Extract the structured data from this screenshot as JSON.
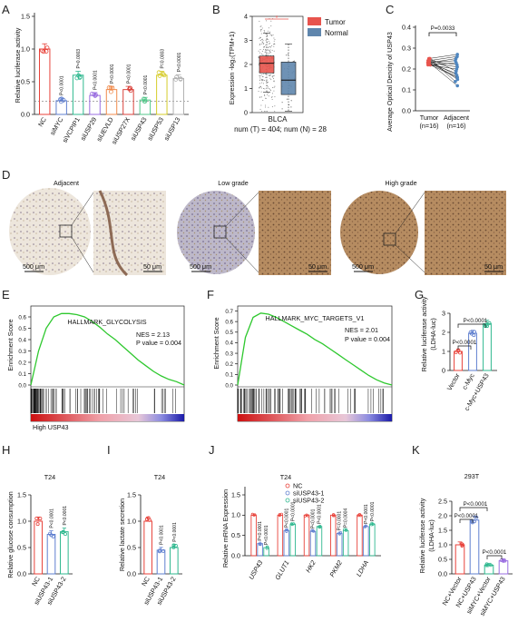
{
  "panels": {
    "A": {
      "label": "A",
      "ylabel": "Relative luciferase activity",
      "yticks": [
        "0.0",
        "0.5",
        "1.0",
        "1.5"
      ],
      "ylim": [
        0,
        1.5
      ],
      "cutoff": 0.2,
      "colors": [
        "#e8423a",
        "#5f7fcf",
        "#2fb88f",
        "#9a6ee0",
        "#f08a4b",
        "#d9423b",
        "#53c78a",
        "#d6cc2a",
        "#b2b2b2"
      ]
    },
    "B": {
      "label": "B",
      "ylabel": "Expression -log₂(TPM+1)",
      "yticks": [
        "0",
        "1",
        "2",
        "3",
        "4"
      ],
      "ylim": [
        0,
        4
      ],
      "legend": [
        {
          "name": "Tumor",
          "color": "#e8544d"
        },
        {
          "name": "Normal",
          "color": "#5f86ad"
        }
      ],
      "star": "*",
      "cohort": "BLCA",
      "num_label": "num (T) = 404; num (N) = 28"
    },
    "C": {
      "label": "C",
      "ylabel": "Average Optical Dencity of USP43",
      "yticks": [
        "0.0",
        "0.1",
        "0.2",
        "0.3",
        "0.4"
      ],
      "ylim": [
        0,
        0.4
      ],
      "pvalue": "P=0.0033",
      "groups": [
        "Tumor",
        "Adjacent"
      ],
      "n_labels": [
        "(n=16)",
        "(n=16)"
      ]
    },
    "D": {
      "label": "D",
      "titles": [
        "Adjacent",
        "Low grade",
        "High grade"
      ],
      "scale_labels": [
        "500 μm",
        "50 μm",
        "500 μm",
        "50 μm",
        "500 μm",
        "50 μm"
      ]
    },
    "E": {
      "label": "E",
      "title": "HALLMARK_GLYCOLYSIS",
      "nes": "NES = 2.13",
      "pval": "P value = 0.004",
      "ylabel": "Enrichment Score",
      "yticks": [
        "0.0",
        "0.1",
        "0.2",
        "0.3",
        "0.4",
        "0.5",
        "0.6"
      ],
      "ylim": [
        0,
        0.68
      ],
      "bottom_label": "High USP43",
      "curve_color": "#2ec82e"
    },
    "F": {
      "label": "F",
      "title": "HALLMARK_MYC_TARGETS_V1",
      "nes": "NES = 2.01",
      "pval": "P value = 0.004",
      "ylabel": "Enrichment Score",
      "yticks": [
        "0.0",
        "0.1",
        "0.2",
        "0.3",
        "0.4",
        "0.5",
        "0.6",
        "0.7"
      ],
      "ylim": [
        0,
        0.73
      ],
      "curve_color": "#2ec82e"
    },
    "G": {
      "label": "G",
      "ylabel": "Relative luciferase activity",
      "ylabel2": "(LDHA-luc)",
      "yticks": [
        "0",
        "1",
        "2",
        "3"
      ],
      "ylim": [
        0,
        3
      ],
      "pvals": [
        "P<0.0001",
        "P<0.0001"
      ],
      "colors": [
        "#e8423a",
        "#5f7fcf",
        "#2fb88f"
      ]
    },
    "H": {
      "label": "H",
      "title": "T24",
      "ylabel": "Relative glucose consumption",
      "yticks": [
        "0.0",
        "0.5",
        "1.0",
        "1.5"
      ],
      "ylim": [
        0,
        1.5
      ],
      "colors": [
        "#e8423a",
        "#5f7fcf",
        "#2fb88f"
      ]
    },
    "I": {
      "label": "I",
      "title": "T24",
      "ylabel": "Relative lactate secretion",
      "yticks": [
        "0.0",
        "0.5",
        "1.0",
        "1.5"
      ],
      "ylim": [
        0,
        1.5
      ],
      "colors": [
        "#e8423a",
        "#5f7fcf",
        "#2fb88f"
      ]
    },
    "J": {
      "label": "J",
      "title": "T24",
      "ylabel": "Relative mRNA Expression",
      "yticks": [
        "0.0",
        "0.5",
        "1.0",
        "1.5"
      ],
      "ylim": [
        0,
        1.5
      ],
      "legend": [
        "NC",
        "siUSP43-1",
        "siUSP43-2"
      ],
      "colors": [
        "#e8423a",
        "#5f7fcf",
        "#2fb88f"
      ]
    },
    "K": {
      "label": "K",
      "title": "293T",
      "ylabel": "Relative luciferase activity",
      "ylabel2": "(LDHA-luc)",
      "yticks": [
        "0.0",
        "0.5",
        "1.0",
        "1.5",
        "2.0",
        "2.5"
      ],
      "ylim": [
        0,
        2.5
      ],
      "pvals": [
        "P<0.0001",
        "P<0.0001",
        "P<0.0001"
      ],
      "colors": [
        "#e8423a",
        "#5f7fcf",
        "#2fb88f",
        "#9a6ee0"
      ]
    }
  },
  "chart_data": [
    {
      "panel": "A",
      "type": "bar",
      "categories": [
        "NC",
        "siMYC",
        "siVCPIP1",
        "siUSP29",
        "siUEVLD",
        "siUSP27X",
        "siUSP43",
        "siUSP53",
        "siUSP13"
      ],
      "values": [
        1.0,
        0.21,
        0.6,
        0.29,
        0.38,
        0.38,
        0.22,
        0.6,
        0.55
      ],
      "pvalues": [
        "",
        "P<0.0001",
        "P=0.0003",
        "P<0.0001",
        "P<0.0001",
        "P<0.0001",
        "P<0.0001",
        "P=0.0003",
        "P<0.0001"
      ],
      "ylabel": "Relative luciferase activity",
      "ylim": [
        0,
        1.5
      ]
    },
    {
      "panel": "B",
      "type": "box",
      "categories": [
        "Tumor",
        "Normal"
      ],
      "series": [
        {
          "name": "Tumor",
          "q1": 1.65,
          "median": 2.05,
          "q3": 2.35,
          "whisker_low": 0.85,
          "whisker_high": 3.3
        },
        {
          "name": "Normal",
          "q1": 0.75,
          "median": 1.35,
          "q3": 2.1,
          "whisker_low": 0.05,
          "whisker_high": 2.85
        }
      ],
      "xlabel": "BLCA",
      "ylabel": "Expression -log₂(TPM+1)",
      "ylim": [
        0,
        4
      ]
    },
    {
      "panel": "C",
      "type": "scatter",
      "categories": [
        "Tumor",
        "Adjacent"
      ],
      "pairs": [
        [
          0.25,
          0.27
        ],
        [
          0.24,
          0.26
        ],
        [
          0.23,
          0.25
        ],
        [
          0.23,
          0.24
        ],
        [
          0.22,
          0.23
        ],
        [
          0.24,
          0.22
        ],
        [
          0.23,
          0.21
        ],
        [
          0.22,
          0.2
        ],
        [
          0.25,
          0.19
        ],
        [
          0.23,
          0.18
        ],
        [
          0.24,
          0.17
        ],
        [
          0.22,
          0.16
        ],
        [
          0.23,
          0.16
        ],
        [
          0.24,
          0.15
        ],
        [
          0.25,
          0.14
        ],
        [
          0.23,
          0.12
        ]
      ],
      "ylabel": "Average Optical Dencity of USP43",
      "ylim": [
        0,
        0.4
      ]
    },
    {
      "panel": "E",
      "type": "line",
      "x": [
        0,
        0.05,
        0.1,
        0.15,
        0.2,
        0.25,
        0.3,
        0.35,
        0.4,
        0.45,
        0.5,
        0.55,
        0.6,
        0.65,
        0.7,
        0.75,
        0.8,
        0.85,
        0.9,
        0.95,
        1.0
      ],
      "series": [
        {
          "values": [
            0.0,
            0.3,
            0.5,
            0.6,
            0.63,
            0.63,
            0.62,
            0.6,
            0.56,
            0.51,
            0.45,
            0.4,
            0.34,
            0.28,
            0.22,
            0.17,
            0.12,
            0.08,
            0.05,
            0.03,
            0.0
          ]
        }
      ],
      "title": "HALLMARK_GLYCOLYSIS",
      "ylabel": "Enrichment Score",
      "ylim": [
        0,
        0.68
      ]
    },
    {
      "panel": "F",
      "type": "line",
      "x": [
        0,
        0.05,
        0.1,
        0.15,
        0.2,
        0.25,
        0.3,
        0.35,
        0.4,
        0.45,
        0.5,
        0.55,
        0.6,
        0.65,
        0.7,
        0.75,
        0.8,
        0.85,
        0.9,
        0.95,
        1.0
      ],
      "series": [
        {
          "values": [
            0.0,
            0.45,
            0.64,
            0.68,
            0.67,
            0.64,
            0.6,
            0.56,
            0.52,
            0.48,
            0.43,
            0.39,
            0.34,
            0.29,
            0.24,
            0.19,
            0.14,
            0.09,
            0.05,
            0.02,
            0.0
          ]
        }
      ],
      "title": "HALLMARK_MYC_TARGETS_V1",
      "ylabel": "Enrichment Score",
      "ylim": [
        0,
        0.73
      ]
    },
    {
      "panel": "G",
      "type": "bar",
      "categories": [
        "Vector",
        "c-Myc",
        "c-Myc+USP43"
      ],
      "values": [
        1.0,
        1.95,
        2.45
      ],
      "ylabel": "Relative luciferase activity",
      "ylim": [
        0,
        3
      ]
    },
    {
      "panel": "H",
      "type": "bar",
      "categories": [
        "NC",
        "siUSP43-1",
        "siUSP43-2"
      ],
      "values": [
        1.0,
        0.75,
        0.8
      ],
      "pvalues": [
        "",
        "P<0.0001",
        "P<0.0001"
      ],
      "title": "T24",
      "ylabel": "Relative glucose consumption",
      "ylim": [
        0,
        1.5
      ]
    },
    {
      "panel": "I",
      "type": "bar",
      "categories": [
        "NC",
        "siUSP43-1",
        "siUSP43-2"
      ],
      "values": [
        1.0,
        0.45,
        0.5
      ],
      "pvalues": [
        "",
        "P<0.0001",
        "P<0.0001"
      ],
      "title": "T24",
      "ylabel": "Relative lactate secretion",
      "ylim": [
        0,
        1.5
      ]
    },
    {
      "panel": "J",
      "type": "bar",
      "categories": [
        "USP43",
        "GLUT1",
        "HK2",
        "PKM2",
        "LDHA"
      ],
      "series": [
        {
          "name": "NC",
          "values": [
            1.0,
            1.0,
            1.0,
            1.0,
            1.0
          ]
        },
        {
          "name": "siUSP43-1",
          "values": [
            0.3,
            0.62,
            0.6,
            0.55,
            0.72
          ]
        },
        {
          "name": "siUSP43-2",
          "values": [
            0.2,
            0.78,
            0.72,
            0.62,
            0.78
          ]
        }
      ],
      "pvalues": [
        [
          "P<0.0001",
          "P<0.0001"
        ],
        [
          "P<0.0001",
          "P<0.0001"
        ],
        [
          "P<0.0001",
          "P<0.0001"
        ],
        [
          "P=0.0001",
          "P=0.0004"
        ],
        [
          "P<0.0001",
          "P<0.0001"
        ]
      ],
      "title": "T24",
      "ylabel": "Relative mRNA Expression",
      "ylim": [
        0,
        1.5
      ]
    },
    {
      "panel": "K",
      "type": "bar",
      "categories": [
        "NC+Vector",
        "NC+USP43",
        "siMYC+Vector",
        "siMYC+USP43"
      ],
      "values": [
        1.0,
        1.85,
        0.3,
        0.45
      ],
      "title": "293T",
      "ylabel": "Relative luciferase activity",
      "ylim": [
        0,
        2.5
      ]
    }
  ]
}
